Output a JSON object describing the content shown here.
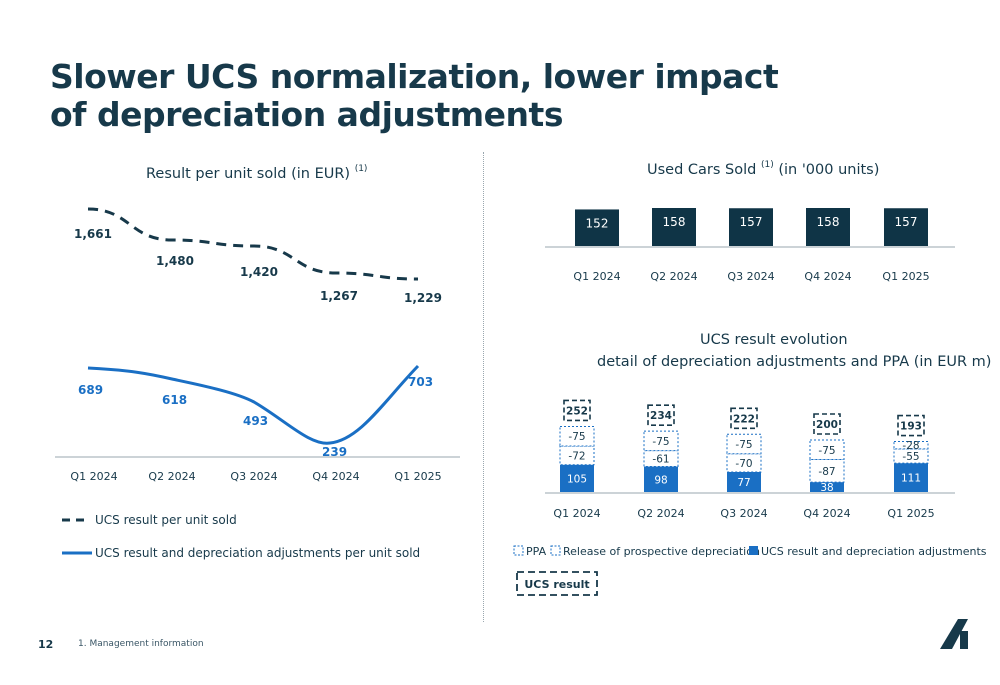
{
  "page": {
    "title": "Slower UCS normalization, lower impact of depreciation adjustments",
    "page_number": "12",
    "footnote": "1.   Management information"
  },
  "colors": {
    "navy": "#17394a",
    "blue": "#1a6fc4",
    "dark_bar": "#0f3446"
  },
  "left_panel": {
    "title": "Result per unit sold (in EUR)",
    "title_sup": "(1)"
  },
  "top_right_panel": {
    "title": "Used Cars Sold",
    "title_sup": "(1)",
    "title_suffix": "(in '000 units)"
  },
  "bottom_right_panel": {
    "title_line1": "UCS result evolution",
    "title_line2": "detail of depreciation adjustments and PPA (in EUR m)"
  },
  "chart_data": [
    {
      "id": "result-per-unit",
      "type": "line",
      "categories": [
        "Q1 2024",
        "Q2 2024",
        "Q3 2024",
        "Q4 2024",
        "Q1 2025"
      ],
      "series": [
        {
          "name": "UCS result per unit sold",
          "style": "dashed",
          "color": "#17394a",
          "values": [
            1661,
            1480,
            1420,
            1267,
            1229
          ],
          "labels": [
            "1,661",
            "1,480",
            "1,420",
            "1,267",
            "1,229"
          ]
        },
        {
          "name": "UCS result and depreciation adjustments per unit sold",
          "style": "solid",
          "color": "#1a6fc4",
          "values": [
            689,
            618,
            493,
            239,
            703
          ],
          "labels": [
            "689",
            "618",
            "493",
            "239",
            "703"
          ]
        }
      ],
      "legend": "bottom"
    },
    {
      "id": "used-cars-sold",
      "type": "bar",
      "categories": [
        "Q1 2024",
        "Q2 2024",
        "Q3 2024",
        "Q4 2024",
        "Q1 2025"
      ],
      "values": [
        152,
        158,
        157,
        158,
        157
      ],
      "labels": [
        "152",
        "158",
        "157",
        "158",
        "157"
      ]
    },
    {
      "id": "ucs-result-evolution",
      "type": "bar",
      "stacked": true,
      "categories": [
        "Q1 2024",
        "Q2 2024",
        "Q3 2024",
        "Q4 2024",
        "Q1 2025"
      ],
      "series": [
        {
          "name": "UCS result and depreciation adjustments",
          "values": [
            105,
            98,
            77,
            38,
            111
          ],
          "labels": [
            "105",
            "98",
            "77",
            "38",
            "111"
          ]
        },
        {
          "name": "Release of prospective depreciation",
          "values": [
            -72,
            -61,
            -70,
            -87,
            -55
          ],
          "labels": [
            "-72",
            "-61",
            "-70",
            "-87",
            "-55"
          ]
        },
        {
          "name": "PPA",
          "values": [
            -75,
            -75,
            -75,
            -75,
            -28
          ],
          "labels": [
            "-75",
            "-75",
            "-75",
            "-75",
            "-28"
          ]
        }
      ],
      "totals": {
        "name": "UCS result",
        "values": [
          252,
          234,
          222,
          200,
          193
        ],
        "labels": [
          "252",
          "234",
          "222",
          "200",
          "193"
        ]
      },
      "legend": "bottom"
    }
  ]
}
